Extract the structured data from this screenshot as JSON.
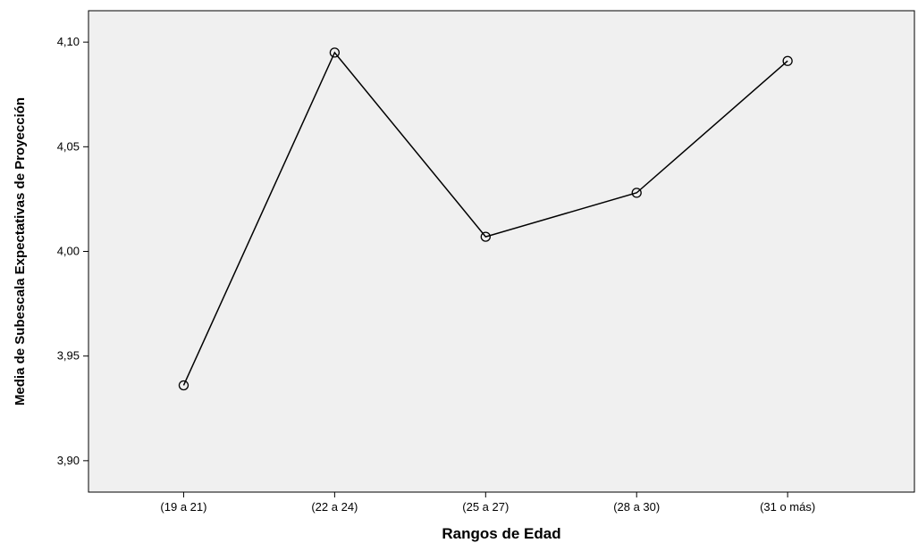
{
  "chart_data": {
    "type": "line",
    "title": "",
    "xlabel": "Rangos de Edad",
    "ylabel": "Media de Subescala Expectativas de Proyección",
    "categories": [
      "(19 a 21)",
      "(22 a 24)",
      "(25 a 27)",
      "(28 a 30)",
      "(31 o más)"
    ],
    "series": [
      {
        "values": [
          3.936,
          4.095,
          4.007,
          4.028,
          4.091
        ]
      }
    ],
    "ylim": [
      3.885,
      4.115
    ],
    "yticks": [
      3.9,
      3.95,
      4.0,
      4.05,
      4.1
    ],
    "ytick_labels": [
      "3,90",
      "3,95",
      "4,00",
      "4,05",
      "4,10"
    ],
    "grid": false,
    "legend": "none",
    "colors": {
      "plot_background": "#f0f0f0",
      "line": "#000000",
      "marker": "#000000"
    }
  }
}
